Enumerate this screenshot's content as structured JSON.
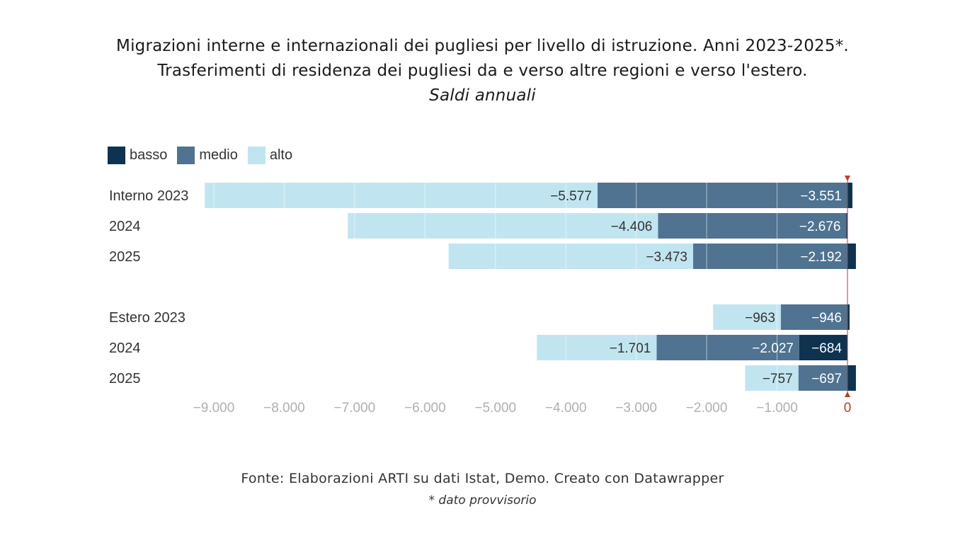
{
  "title": {
    "line1": "Migrazioni interne e internazionali dei pugliesi per livello di istruzione. Anni 2023-2025*.",
    "line2": "Trasferimenti di residenza dei pugliesi da e verso altre regioni e verso l'estero.",
    "line3": "Saldi annuali"
  },
  "legend": [
    {
      "label": "basso",
      "color": "#0d3350"
    },
    {
      "label": "medio",
      "color": "#4f7391"
    },
    {
      "label": "alto",
      "color": "#c1e5f0"
    }
  ],
  "footer": {
    "source": "Fonte: Elaborazioni ARTI su dati Istat, Demo. Creato con Datawrapper",
    "note": "*  dato provvisorio"
  },
  "chart_data": {
    "type": "bar",
    "orientation": "horizontal",
    "stacked": true,
    "categories": [
      "Interno 2023",
      "2024",
      "2025",
      "Estero 2023",
      "2024",
      "2025"
    ],
    "groups": [
      "Interno",
      "Estero"
    ],
    "series": [
      {
        "name": "basso",
        "color": "#0d3350",
        "values": [
          70,
          -15,
          120,
          30,
          -684,
          120
        ],
        "labels": [
          null,
          null,
          null,
          null,
          "−684",
          null
        ]
      },
      {
        "name": "medio",
        "color": "#4f7391",
        "values": [
          -3551,
          -2676,
          -2192,
          -946,
          -2027,
          -697
        ],
        "labels": [
          "−3.551",
          "−2.676",
          "−2.192",
          "−946",
          "−2.027",
          "−697"
        ]
      },
      {
        "name": "alto",
        "color": "#c1e5f0",
        "values": [
          -5577,
          -4406,
          -3473,
          -963,
          -1701,
          -757
        ],
        "labels": [
          "−5.577",
          "−4.406",
          "−3.473",
          "−963",
          "−1.701",
          "−757"
        ]
      }
    ],
    "xlim": [
      -9000,
      0
    ],
    "xticks": [
      -9000,
      -8000,
      -7000,
      -6000,
      -5000,
      -4000,
      -3000,
      -2000,
      -1000,
      0
    ],
    "xtick_labels": [
      "−9.000",
      "−8.000",
      "−7.000",
      "−6.000",
      "−5.000",
      "−4.000",
      "−3.000",
      "−2.000",
      "−1.000",
      "0"
    ],
    "reference_line": {
      "value": 0,
      "color": "#c0392b"
    },
    "grid": true,
    "legend_position": "top-left"
  }
}
